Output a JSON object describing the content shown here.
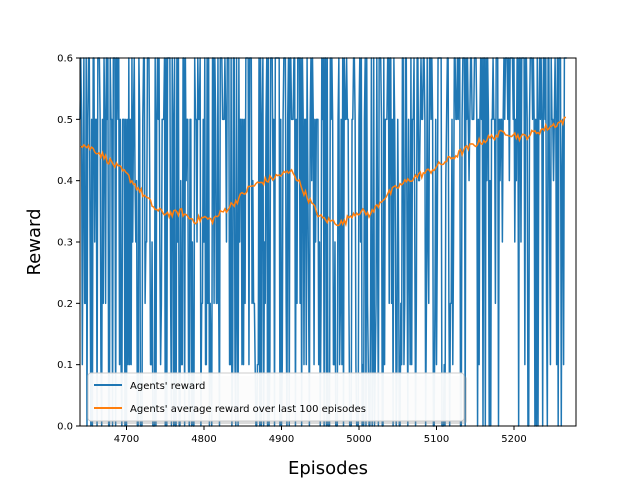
{
  "chart_data": {
    "type": "line",
    "title": "",
    "xlabel": "Episodes",
    "ylabel": "Reward",
    "xlim": [
      4640,
      5280
    ],
    "ylim": [
      0.0,
      0.6
    ],
    "x_ticks": [
      4700,
      4800,
      4900,
      5000,
      5100,
      5200
    ],
    "y_ticks": [
      0.0,
      0.1,
      0.2,
      0.3,
      0.4,
      0.5,
      0.6
    ],
    "grid": false,
    "legend_position": "lower-left",
    "series": [
      {
        "name": "Agents' reward",
        "color": "#1f77b4",
        "note_generation": "raw per-episode rewards (0.0-0.6), sampled every episode from 4640 to 5268",
        "x_start": 4640,
        "x_end": 5268,
        "values_high_density_after": 5055
      },
      {
        "name": "Agents' average reward over last 100 episodes",
        "color": "#ff7f0e",
        "x": [
          4641,
          4660,
          4680,
          4700,
          4720,
          4740,
          4760,
          4770,
          4780,
          4790,
          4800,
          4810,
          4820,
          4840,
          4860,
          4880,
          4900,
          4915,
          4930,
          4950,
          4960,
          4980,
          4990,
          5000,
          5015,
          5030,
          5050,
          5070,
          5090,
          5110,
          5130,
          5150,
          5170,
          5190,
          5210,
          5230,
          5250,
          5268
        ],
        "values": [
          0.46,
          0.45,
          0.43,
          0.41,
          0.38,
          0.35,
          0.345,
          0.35,
          0.34,
          0.335,
          0.34,
          0.335,
          0.345,
          0.365,
          0.39,
          0.4,
          0.41,
          0.415,
          0.38,
          0.34,
          0.335,
          0.33,
          0.345,
          0.35,
          0.345,
          0.37,
          0.39,
          0.405,
          0.415,
          0.43,
          0.445,
          0.46,
          0.47,
          0.48,
          0.47,
          0.48,
          0.49,
          0.5
        ]
      }
    ]
  }
}
